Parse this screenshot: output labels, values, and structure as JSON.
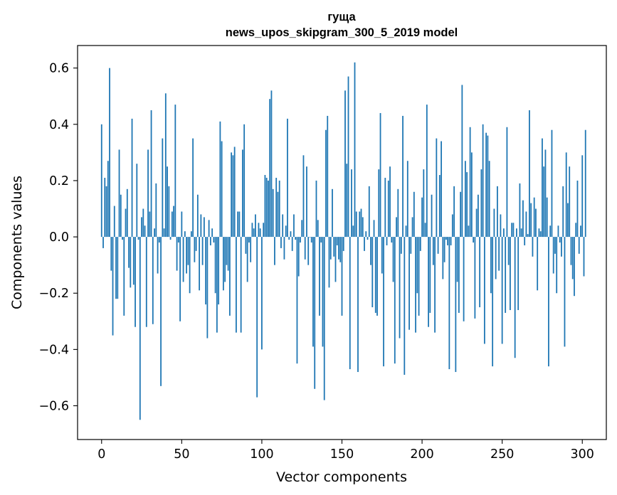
{
  "chart_data": {
    "type": "bar",
    "title_lines": [
      "гуща",
      "news_upos_skipgram_300_5_2019 model"
    ],
    "xlabel": "Vector components",
    "ylabel": "Components values",
    "xlim": [
      -15,
      315
    ],
    "ylim": [
      -0.72,
      0.68
    ],
    "xticks": [
      0,
      50,
      100,
      150,
      200,
      250,
      300
    ],
    "yticks": [
      -0.6,
      -0.4,
      -0.2,
      0.0,
      0.2,
      0.4,
      0.6
    ],
    "ytick_labels": [
      "−0.6",
      "−0.4",
      "−0.2",
      "0.0",
      "0.2",
      "0.4",
      "0.6"
    ],
    "grid": false,
    "color": "#1f77b4",
    "values": [
      0.4,
      -0.04,
      0.21,
      0.18,
      0.27,
      0.6,
      -0.12,
      -0.35,
      0.11,
      -0.22,
      -0.22,
      0.31,
      0.15,
      -0.01,
      -0.28,
      0.1,
      0.17,
      -0.11,
      -0.18,
      0.42,
      -0.17,
      -0.32,
      0.26,
      -0.01,
      -0.65,
      0.07,
      0.1,
      0.04,
      -0.32,
      0.31,
      0.09,
      0.45,
      -0.31,
      0.03,
      0.19,
      -0.13,
      -0.02,
      -0.53,
      0.35,
      0.03,
      0.51,
      0.25,
      0.18,
      -0.01,
      0.09,
      0.11,
      0.47,
      -0.12,
      -0.02,
      -0.3,
      0.09,
      -0.16,
      0.02,
      -0.13,
      -0.1,
      -0.2,
      0.02,
      0.35,
      -0.09,
      -0.05,
      0.15,
      -0.19,
      0.08,
      -0.1,
      0.07,
      -0.24,
      -0.36,
      0.06,
      -0.03,
      0.03,
      -0.02,
      -0.2,
      -0.34,
      -0.24,
      0.41,
      0.34,
      -0.19,
      -0.16,
      -0.1,
      -0.12,
      -0.28,
      0.3,
      0.29,
      0.32,
      -0.34,
      0.09,
      0.09,
      -0.34,
      0.31,
      0.4,
      -0.06,
      -0.16,
      -0.02,
      -0.09,
      0.05,
      0.03,
      0.08,
      -0.57,
      0.05,
      0.03,
      -0.4,
      0.05,
      0.22,
      0.21,
      0.2,
      0.49,
      0.52,
      0.17,
      -0.1,
      0.21,
      0.16,
      0.2,
      -0.04,
      0.08,
      -0.08,
      0.04,
      0.42,
      -0.01,
      0.02,
      -0.05,
      0.08,
      -0.01,
      -0.45,
      -0.14,
      -0.02,
      0.06,
      0.29,
      -0.08,
      0.25,
      -0.1,
      0.0,
      -0.02,
      -0.39,
      -0.54,
      0.2,
      0.06,
      -0.28,
      -0.02,
      -0.39,
      -0.58,
      0.38,
      0.43,
      -0.18,
      -0.08,
      0.17,
      -0.07,
      -0.16,
      -0.03,
      -0.08,
      -0.09,
      -0.28,
      -0.05,
      0.52,
      0.26,
      0.57,
      -0.47,
      0.24,
      0.04,
      0.62,
      0.09,
      -0.48,
      0.09,
      0.1,
      0.07,
      -0.05,
      0.02,
      -0.01,
      0.18,
      -0.1,
      -0.25,
      0.06,
      -0.27,
      -0.28,
      0.24,
      0.44,
      -0.13,
      -0.46,
      0.21,
      -0.03,
      0.2,
      0.25,
      -0.02,
      -0.16,
      -0.45,
      0.07,
      0.17,
      -0.36,
      -0.06,
      0.43,
      -0.49,
      0.04,
      0.27,
      -0.33,
      -0.06,
      0.07,
      0.16,
      -0.34,
      -0.2,
      -0.28,
      -0.05,
      0.14,
      0.24,
      0.05,
      0.47,
      -0.32,
      -0.27,
      0.15,
      -0.1,
      -0.34,
      0.35,
      -0.06,
      0.22,
      0.34,
      -0.15,
      -0.09,
      -0.01,
      -0.03,
      -0.47,
      -0.03,
      0.08,
      0.18,
      -0.48,
      -0.16,
      -0.27,
      0.16,
      0.54,
      -0.3,
      0.27,
      0.23,
      0.04,
      0.39,
      0.3,
      -0.02,
      -0.29,
      0.1,
      0.15,
      -0.25,
      0.24,
      0.4,
      -0.38,
      0.37,
      0.36,
      0.27,
      -0.2,
      -0.46,
      0.1,
      -0.15,
      0.18,
      -0.12,
      0.08,
      -0.38,
      0.03,
      -0.27,
      0.39,
      -0.1,
      -0.26,
      0.05,
      0.05,
      -0.43,
      0.03,
      -0.26,
      0.19,
      0.03,
      0.13,
      -0.03,
      0.09,
      0.01,
      0.45,
      0.12,
      -0.07,
      0.14,
      0.1,
      -0.19,
      0.03,
      0.02,
      0.35,
      0.25,
      0.31,
      0.14,
      -0.46,
      0.04,
      0.38,
      -0.13,
      -0.06,
      -0.2,
      0.04,
      -0.02,
      -0.07,
      0.18,
      -0.39,
      0.3,
      0.12,
      0.25,
      -0.1,
      -0.15,
      -0.21,
      0.05,
      0.2,
      -0.06,
      0.04,
      0.29,
      -0.14,
      0.38
    ]
  }
}
